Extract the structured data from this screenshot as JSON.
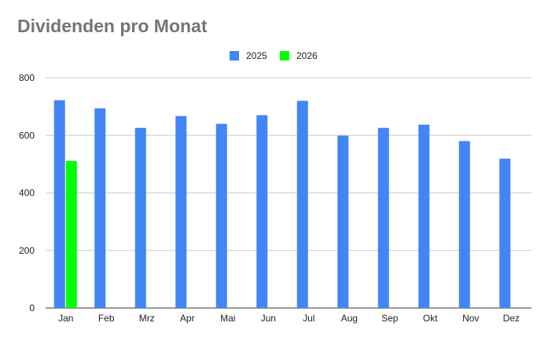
{
  "chart_data": {
    "type": "bar",
    "title": "Dividenden pro Monat",
    "xlabel": "",
    "ylabel": "",
    "categories": [
      "Jan",
      "Feb",
      "Mrz",
      "Apr",
      "Mai",
      "Jun",
      "Jul",
      "Aug",
      "Sep",
      "Okt",
      "Nov",
      "Dez"
    ],
    "series": [
      {
        "name": "2025",
        "color": "#4285f4",
        "values": [
          722,
          694,
          626,
          667,
          640,
          670,
          720,
          599,
          626,
          637,
          580,
          519
        ]
      },
      {
        "name": "2026",
        "color": "#00ff00",
        "values": [
          511,
          null,
          null,
          null,
          null,
          null,
          null,
          null,
          null,
          null,
          null,
          null
        ]
      }
    ],
    "ylim": [
      0,
      800
    ],
    "yticks": [
      "0",
      "200",
      "400",
      "600",
      "800"
    ],
    "grid": true,
    "legend_position": "top-center"
  }
}
